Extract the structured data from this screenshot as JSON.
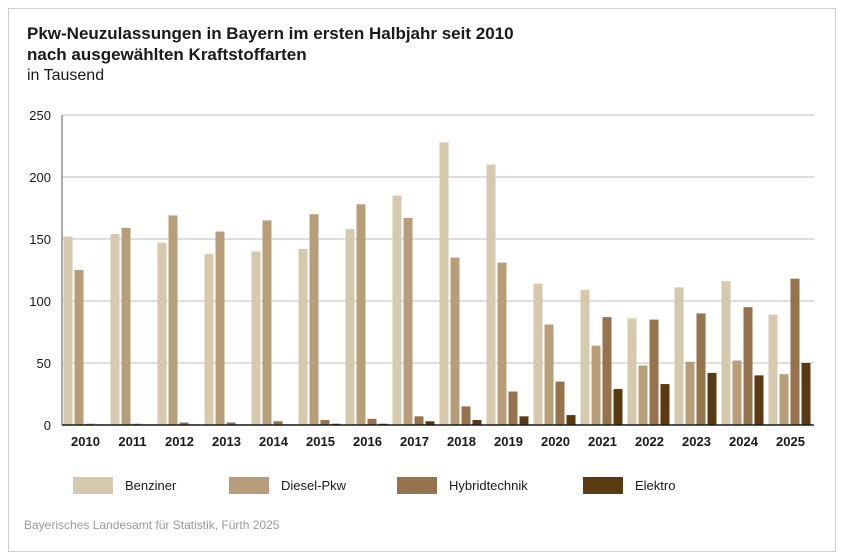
{
  "chart_data": {
    "type": "bar",
    "title": "Pkw-Neuzulassungen in Bayern im ersten Halbjahr seit 2010",
    "title_line2": "nach ausgewählten Kraftstoffarten",
    "subtitle": "in Tausend",
    "xlabel": "",
    "ylabel": "",
    "ylim": [
      0,
      250
    ],
    "yticks": [
      0,
      50,
      100,
      150,
      200,
      250
    ],
    "grid": true,
    "legend_position": "bottom",
    "categories": [
      "2010",
      "2011",
      "2012",
      "2013",
      "2014",
      "2015",
      "2016",
      "2017",
      "2018",
      "2019",
      "2020",
      "2021",
      "2022",
      "2023",
      "2024",
      "2025"
    ],
    "series": [
      {
        "name": "Benziner",
        "color": "#d6c9ad",
        "values": [
          152,
          154,
          147,
          138,
          140,
          142,
          158,
          185,
          228,
          210,
          114,
          109,
          86,
          111,
          116,
          89
        ]
      },
      {
        "name": "Diesel-Pkw",
        "color": "#b89e78",
        "values": [
          125,
          159,
          169,
          156,
          165,
          170,
          178,
          167,
          135,
          131,
          81,
          64,
          48,
          51,
          52,
          41
        ]
      },
      {
        "name": "Hybridtechnik",
        "color": "#96734d",
        "values": [
          1,
          1,
          2,
          2,
          3,
          4,
          5,
          7,
          15,
          27,
          35,
          87,
          85,
          90,
          95,
          118
        ]
      },
      {
        "name": "Elektro",
        "color": "#5a3a10",
        "values": [
          0.5,
          0.5,
          0.5,
          0.5,
          0.5,
          1,
          1,
          3,
          4,
          7,
          8,
          29,
          33,
          42,
          40,
          50
        ]
      }
    ]
  },
  "source": "Bayerisches Landesamt für Statistik, Fürth 2025"
}
